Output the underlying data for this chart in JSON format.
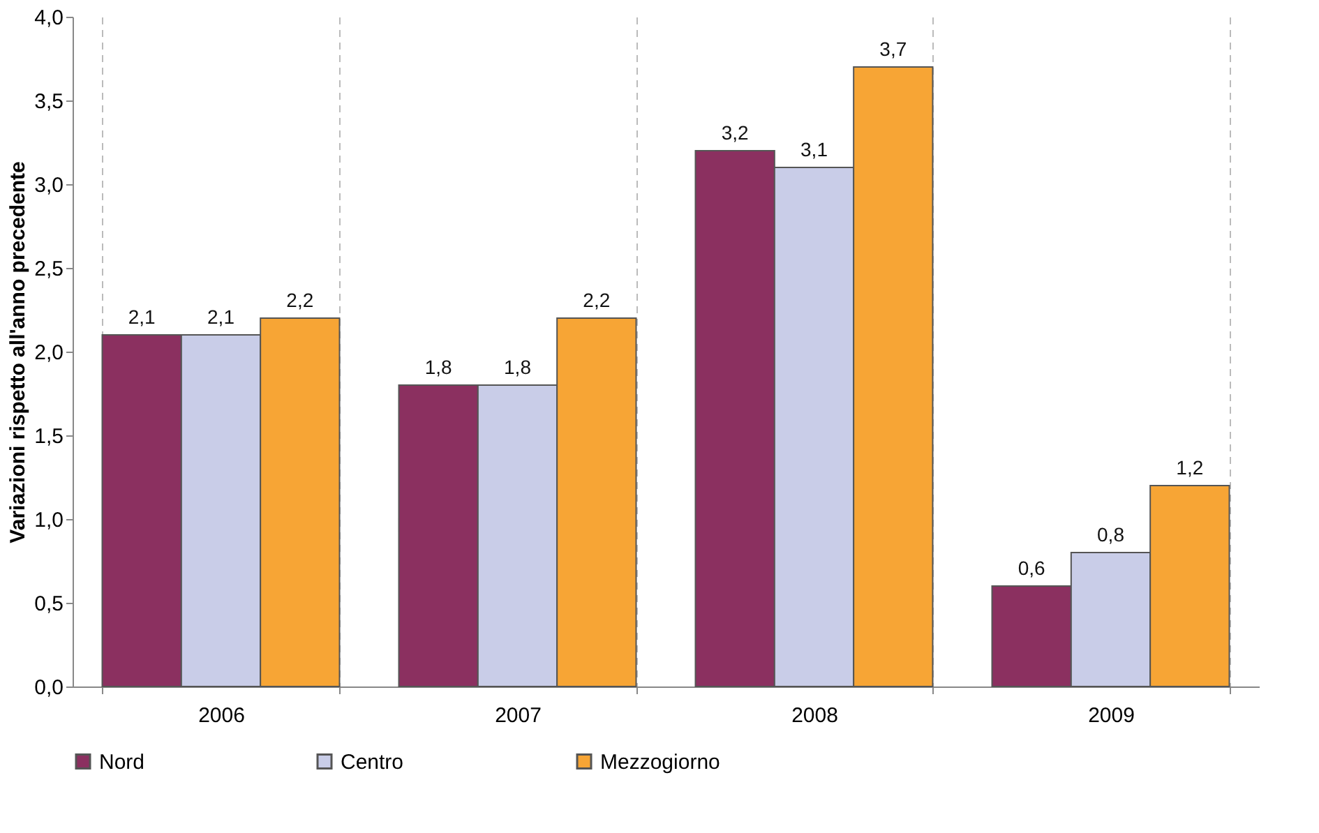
{
  "chart_data": {
    "type": "bar",
    "ylabel": "Variazioni rispetto all'anno precedente",
    "categories": [
      "2006",
      "2007",
      "2008",
      "2009"
    ],
    "series": [
      {
        "name": "Nord",
        "color": "#8b3060",
        "values": [
          2.1,
          1.8,
          3.2,
          0.6
        ],
        "value_labels": [
          "2,1",
          "1,8",
          "3,2",
          "0,6"
        ]
      },
      {
        "name": "Centro",
        "color": "#c9cde8",
        "values": [
          2.1,
          1.8,
          3.1,
          0.8
        ],
        "value_labels": [
          "2,1",
          "1,8",
          "3,1",
          "0,8"
        ]
      },
      {
        "name": "Mezzogiorno",
        "color": "#f7a535",
        "values": [
          2.2,
          2.2,
          3.7,
          1.2
        ],
        "value_labels": [
          "2,2",
          "2,2",
          "3,7",
          "1,2"
        ]
      }
    ],
    "ylim": [
      0,
      4
    ],
    "yticks": [
      {
        "value": 0,
        "label": "0,0"
      },
      {
        "value": 0.5,
        "label": "0,5"
      },
      {
        "value": 1,
        "label": "1,0"
      },
      {
        "value": 1.5,
        "label": "1,5"
      },
      {
        "value": 2,
        "label": "2,0"
      },
      {
        "value": 2.5,
        "label": "2,5"
      },
      {
        "value": 3,
        "label": "3,0"
      },
      {
        "value": 3.5,
        "label": "3,5"
      },
      {
        "value": 4,
        "label": "4,0"
      }
    ],
    "grid": "x",
    "legend": "bottom"
  }
}
